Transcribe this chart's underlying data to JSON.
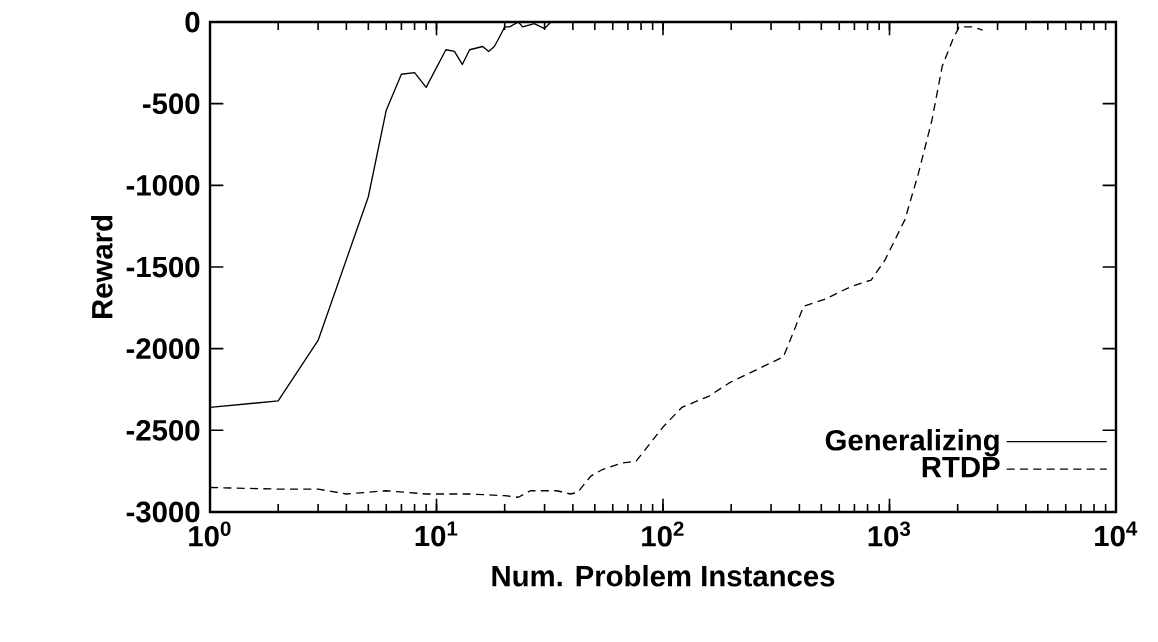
{
  "chart_data": {
    "type": "line",
    "xlabel": "Num. Problem Instances",
    "ylabel": "Reward",
    "log": "x",
    "legend": "bottom right",
    "xlim": [
      1,
      10000
    ],
    "ylim": [
      -3000,
      0
    ],
    "xticks": [
      {
        "value": 1,
        "label": "10$^{0}$"
      },
      {
        "value": 10,
        "label": "10$^{1}$"
      },
      {
        "value": 100,
        "label": "10$^{2}$"
      },
      {
        "value": 1000,
        "label": "10$^{3}$"
      },
      {
        "value": 10000,
        "label": "10$^{4}$"
      }
    ],
    "yticks": [
      -3000,
      -2500,
      -2000,
      -1500,
      -1000,
      -500,
      0
    ],
    "series": [
      {
        "name": "Generalizing",
        "color": "#000000",
        "line_style": "solid",
        "x": [
          1,
          2,
          3,
          5,
          6,
          7,
          8,
          9,
          11,
          12,
          13,
          14,
          16,
          17,
          18,
          19,
          20,
          21,
          23,
          24,
          27,
          30,
          32
        ],
        "values": [
          -2360,
          -2320,
          -1950,
          -1070,
          -540,
          -320,
          -310,
          -400,
          -170,
          -180,
          -260,
          -170,
          -150,
          -180,
          -150,
          -90,
          -30,
          -30,
          0,
          -30,
          -10,
          -40,
          0
        ]
      },
      {
        "name": "RTDP",
        "color": "#000000",
        "line_style": "dashed",
        "x": [
          1,
          2,
          3,
          4,
          6,
          9,
          10,
          14,
          20,
          23,
          26,
          34,
          39,
          42,
          48,
          54,
          66,
          76,
          100,
          121,
          160,
          196,
          258,
          340,
          364,
          418,
          513,
          676,
          830,
          953,
          1170,
          1340,
          1540,
          1710,
          1900,
          2030,
          2330,
          2580
        ],
        "values": [
          -2850,
          -2860,
          -2860,
          -2890,
          -2870,
          -2890,
          -2890,
          -2890,
          -2900,
          -2910,
          -2870,
          -2870,
          -2890,
          -2880,
          -2780,
          -2740,
          -2700,
          -2690,
          -2480,
          -2360,
          -2290,
          -2210,
          -2130,
          -2050,
          -1950,
          -1740,
          -1700,
          -1620,
          -1580,
          -1460,
          -1210,
          -930,
          -600,
          -270,
          -110,
          -30,
          -30,
          -50
        ]
      }
    ]
  }
}
